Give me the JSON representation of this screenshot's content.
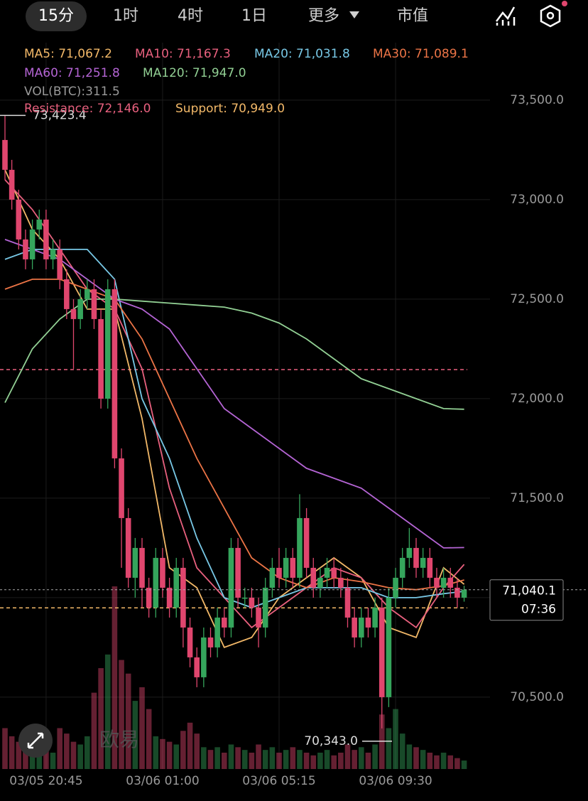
{
  "tabs": [
    "15分",
    "1时",
    "4时",
    "1日",
    "更多",
    "市值"
  ],
  "watermark": "欧易",
  "chart_data": {
    "type": "candlestick",
    "categories": [
      null,
      null,
      null,
      null,
      null,
      null,
      "03/05 20:45",
      null,
      null,
      null,
      null,
      null,
      null,
      null,
      null,
      null,
      null,
      null,
      null,
      null,
      null,
      null,
      null,
      "03/06 01:00",
      null,
      null,
      null,
      null,
      null,
      null,
      null,
      null,
      null,
      null,
      null,
      null,
      null,
      null,
      null,
      null,
      "03/06 05:15",
      null,
      null,
      null,
      null,
      null,
      null,
      null,
      null,
      null,
      null,
      null,
      null,
      null,
      null,
      null,
      null,
      "03/06 09:30",
      null,
      null,
      null,
      null,
      null,
      null,
      null,
      null,
      null,
      null
    ],
    "open": [
      73300,
      73150,
      73000,
      72800,
      72700,
      72850,
      72900,
      72700,
      72750,
      72600,
      72450,
      72400,
      72500,
      72550,
      72400,
      72000,
      72550,
      71700,
      71400,
      71100,
      71250,
      71050,
      70950,
      71200,
      71050,
      70950,
      71150,
      70850,
      70700,
      70600,
      70800,
      70750,
      70900,
      70850,
      71250,
      71000,
      71000,
      70950,
      70850,
      71050,
      71150,
      71100,
      71200,
      71100,
      71400,
      71150,
      71050,
      71100,
      71150,
      71100,
      71050,
      70900,
      70800,
      70900,
      70850,
      70950,
      70500,
      71000,
      71100,
      71200,
      71250,
      71150,
      71200,
      71100,
      71050,
      71100,
      71050,
      71000
    ],
    "high": [
      73423.4,
      73200,
      73050,
      72850,
      72900,
      72950,
      72950,
      72800,
      72800,
      72650,
      72500,
      72550,
      72600,
      72600,
      72450,
      72600,
      72600,
      71750,
      71450,
      71300,
      71300,
      71100,
      71250,
      71250,
      71100,
      71200,
      71200,
      70900,
      70750,
      70850,
      70850,
      70950,
      70950,
      71300,
      71300,
      71050,
      71050,
      71000,
      71100,
      71200,
      71250,
      71250,
      71250,
      71520,
      71450,
      71200,
      71150,
      71200,
      71200,
      71150,
      71100,
      70950,
      70950,
      70950,
      71000,
      71000,
      71050,
      71150,
      71250,
      71350,
      71300,
      71250,
      71250,
      71150,
      71150,
      71150,
      71100,
      71060
    ],
    "low": [
      73100,
      72950,
      72750,
      72650,
      72650,
      72800,
      72650,
      72650,
      72550,
      72400,
      72150,
      72350,
      72450,
      72350,
      71950,
      71950,
      71650,
      71150,
      71050,
      71000,
      70950,
      70900,
      70900,
      71000,
      70900,
      70900,
      70750,
      70650,
      70550,
      70550,
      70700,
      70700,
      70800,
      70800,
      70950,
      70950,
      70900,
      70750,
      70800,
      71000,
      71050,
      71050,
      71050,
      71050,
      71100,
      71000,
      71000,
      71050,
      71050,
      71000,
      70850,
      70750,
      70750,
      70800,
      70800,
      70343.0,
      70450,
      70950,
      71050,
      71150,
      71100,
      71100,
      71050,
      71000,
      71000,
      71000,
      70950,
      70980
    ],
    "close": [
      73150,
      73000,
      72800,
      72700,
      72850,
      72900,
      72700,
      72750,
      72600,
      72450,
      72400,
      72500,
      72550,
      72400,
      72000,
      72550,
      71700,
      71400,
      71100,
      71250,
      71050,
      70950,
      71200,
      71050,
      70950,
      71150,
      70850,
      70700,
      70600,
      70800,
      70750,
      70900,
      70850,
      71250,
      71000,
      71000,
      70950,
      70850,
      71050,
      71150,
      71100,
      71200,
      71100,
      71400,
      71150,
      71050,
      71100,
      71150,
      71100,
      71050,
      70900,
      70800,
      70900,
      70850,
      70950,
      70500,
      71000,
      71100,
      71200,
      71250,
      71150,
      71200,
      71100,
      71050,
      71100,
      71050,
      71000,
      71040.1
    ],
    "volume": [
      1500,
      1200,
      1000,
      900,
      800,
      700,
      900,
      600,
      1500,
      1300,
      1000,
      900,
      1200,
      2800,
      3700,
      4200,
      6700,
      4000,
      3500,
      2500,
      3000,
      2200,
      1200,
      1100,
      1000,
      900,
      1400,
      1700,
      1300,
      800,
      700,
      800,
      600,
      900,
      800,
      700,
      600,
      900,
      700,
      800,
      600,
      700,
      800,
      700,
      600,
      500,
      600,
      700,
      500,
      600,
      900,
      700,
      800,
      600,
      900,
      2000,
      1500,
      2200,
      1300,
      900,
      800,
      700,
      600,
      500,
      600,
      500,
      400,
      311.5
    ],
    "up_color": "#35a55c",
    "down_color": "#e0466e",
    "ma_series": [
      {
        "label": "MA5: 71,067.2",
        "color": "#f2b868",
        "x": [
          0,
          4,
          8,
          12,
          16,
          20,
          24,
          28,
          32,
          36,
          40,
          44,
          48,
          52,
          56,
          60,
          64,
          67
        ],
        "values": [
          73150,
          72850,
          72700,
          72450,
          72450,
          71900,
          71150,
          71050,
          70750,
          70800,
          71000,
          71100,
          71200,
          71100,
          70850,
          70800,
          71150,
          71067.2
        ]
      },
      {
        "label": "MA10: 71,167.3",
        "color": "#e8607e",
        "x": [
          0,
          4,
          8,
          12,
          16,
          20,
          24,
          28,
          32,
          36,
          40,
          44,
          48,
          52,
          56,
          60,
          64,
          67
        ],
        "values": [
          73100,
          72950,
          72750,
          72550,
          72450,
          72150,
          71550,
          71150,
          71000,
          70850,
          70950,
          71050,
          71150,
          71100,
          70950,
          70850,
          71050,
          71167.3
        ]
      },
      {
        "label": "MA20: 71,031.8",
        "color": "#78c8e6",
        "x": [
          0,
          4,
          8,
          12,
          16,
          20,
          24,
          28,
          32,
          36,
          40,
          44,
          48,
          52,
          56,
          60,
          64,
          67
        ],
        "values": [
          72700,
          72750,
          72750,
          72750,
          72600,
          72000,
          71700,
          71300,
          71000,
          70950,
          71000,
          71050,
          71050,
          71050,
          71000,
          71000,
          71020,
          71031.8
        ]
      },
      {
        "label": "MA30: 71,089.1",
        "color": "#ec7446",
        "x": [
          0,
          4,
          8,
          12,
          16,
          20,
          24,
          28,
          32,
          36,
          40,
          44,
          48,
          52,
          56,
          60,
          64,
          67
        ],
        "values": [
          72550,
          72600,
          72600,
          72550,
          72500,
          72300,
          72000,
          71700,
          71450,
          71200,
          71100,
          71050,
          71100,
          71080,
          71050,
          71040,
          71060,
          71089.1
        ]
      },
      {
        "label": "MA60: 71,251.8",
        "color": "#b464d4",
        "x": [
          0,
          4,
          8,
          12,
          16,
          20,
          24,
          28,
          32,
          36,
          40,
          44,
          48,
          52,
          56,
          60,
          64,
          67
        ],
        "values": [
          72800,
          72750,
          72700,
          72600,
          72500,
          72450,
          72350,
          72150,
          71950,
          71850,
          71750,
          71650,
          71600,
          71550,
          71450,
          71350,
          71250,
          71251.8
        ]
      },
      {
        "label": "MA120: 71,947.0",
        "color": "#92d094",
        "x": [
          0,
          4,
          8,
          12,
          16,
          20,
          24,
          28,
          32,
          36,
          40,
          44,
          48,
          52,
          56,
          60,
          64,
          67
        ],
        "values": [
          71980,
          72250,
          72400,
          72500,
          72500,
          72490,
          72480,
          72470,
          72460,
          72430,
          72380,
          72300,
          72200,
          72100,
          72050,
          72000,
          71950,
          71947.0
        ]
      }
    ],
    "volume_label": "VOL(BTC):311.5",
    "resistance": {
      "label": "Resistance: 72,146.0",
      "value": 72146.0,
      "color": "#e8607e"
    },
    "support": {
      "label": "Support: 70,949.0",
      "value": 70949.0,
      "color": "#f2b868"
    },
    "high_marker": {
      "value": 73423.4,
      "label": "73,423.4"
    },
    "low_marker": {
      "value": 70343.0,
      "label": "70,343.0"
    },
    "last_price": {
      "value": 71040.1,
      "label": "71,040.1",
      "countdown": "07:36"
    },
    "ylim": [
      70139,
      73789
    ],
    "yticks": [
      {
        "value": 70500,
        "label": "70,500.0"
      },
      {
        "value": 71000,
        "label": "71,000.0"
      },
      {
        "value": 71500,
        "label": "71,500.0"
      },
      {
        "value": 72000,
        "label": "72,000.0"
      },
      {
        "value": 72500,
        "label": "72,500.0"
      },
      {
        "value": 73000,
        "label": "73,000.0"
      },
      {
        "value": 73500,
        "label": "73,500.0"
      }
    ],
    "grid": true
  }
}
